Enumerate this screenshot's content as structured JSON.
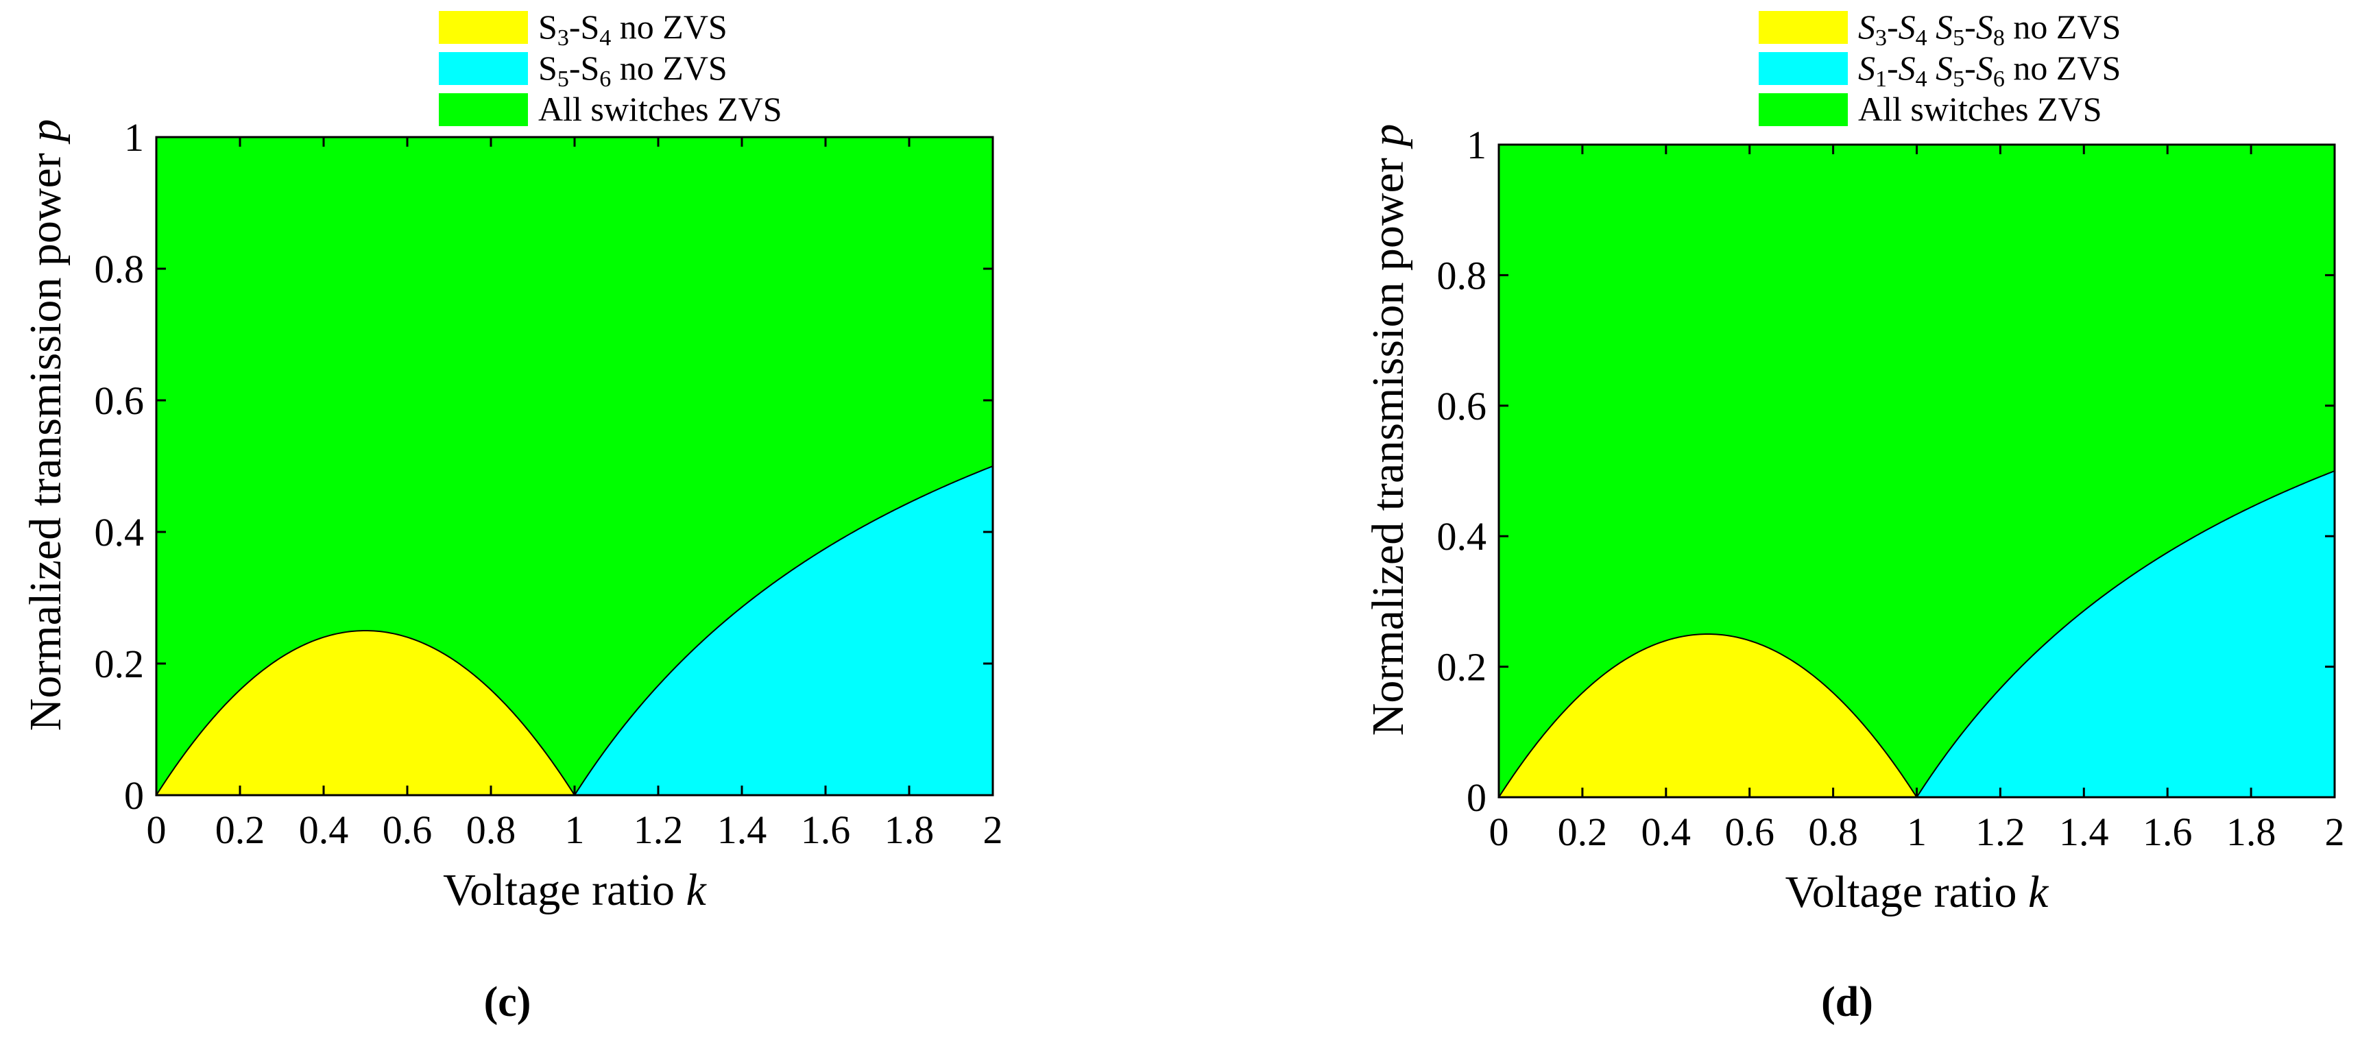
{
  "chart_data": [
    {
      "type": "area",
      "panel_label": "(c)",
      "xlabel": {
        "text": "Voltage ratio ",
        "var": "k"
      },
      "ylabel": {
        "text": "Normalized transmission power ",
        "var": "p"
      },
      "xlim": [
        0,
        2
      ],
      "ylim": [
        0,
        1
      ],
      "x_ticks": [
        "0",
        "0.2",
        "0.4",
        "0.6",
        "0.8",
        "1",
        "1.2",
        "1.4",
        "1.6",
        "1.8",
        "2"
      ],
      "y_ticks": [
        "0",
        "0.2",
        "0.4",
        "0.6",
        "0.8",
        "1"
      ],
      "grid": false,
      "legend_position": "top-center",
      "series": [
        {
          "name_parts": [
            {
              "t": "S"
            },
            {
              "t": "3",
              "sub": true
            },
            {
              "t": "-S"
            },
            {
              "t": "4",
              "sub": true
            },
            {
              "t": " no ZVS"
            }
          ],
          "color": "#ffff00",
          "x_range": [
            0,
            1
          ],
          "boundary": "p = k(1 - k)"
        },
        {
          "name_parts": [
            {
              "t": "S"
            },
            {
              "t": "5",
              "sub": true
            },
            {
              "t": "-S"
            },
            {
              "t": "6",
              "sub": true
            },
            {
              "t": " no ZVS"
            }
          ],
          "color": "#00ffff",
          "x_range": [
            1,
            2
          ],
          "boundary": "p = (k - 1)/k, capped at 0.5"
        },
        {
          "name_parts": [
            {
              "t": "All switches ZVS"
            }
          ],
          "color": "#00ff00",
          "x_range": [
            0,
            2
          ],
          "boundary": "remaining region"
        }
      ]
    },
    {
      "type": "area",
      "panel_label": "(d)",
      "xlabel": {
        "text": "Voltage ratio ",
        "var": "k"
      },
      "ylabel": {
        "text": "Normalized transmission power ",
        "var": "p"
      },
      "xlim": [
        0,
        2
      ],
      "ylim": [
        0,
        1
      ],
      "x_ticks": [
        "0",
        "0.2",
        "0.4",
        "0.6",
        "0.8",
        "1",
        "1.2",
        "1.4",
        "1.6",
        "1.8",
        "2"
      ],
      "y_ticks": [
        "0",
        "0.2",
        "0.4",
        "0.6",
        "0.8",
        "1"
      ],
      "grid": false,
      "legend_position": "top-center",
      "series": [
        {
          "name_parts": [
            {
              "t": "S",
              "i": true
            },
            {
              "t": "3",
              "sub": true
            },
            {
              "t": "-"
            },
            {
              "t": "S",
              "i": true
            },
            {
              "t": "4",
              "sub": true
            },
            {
              "t": " "
            },
            {
              "t": "S",
              "i": true
            },
            {
              "t": "5",
              "sub": true
            },
            {
              "t": "-"
            },
            {
              "t": "S",
              "i": true
            },
            {
              "t": "8",
              "sub": true
            },
            {
              "t": " no ZVS"
            }
          ],
          "color": "#ffff00",
          "x_range": [
            0,
            1
          ],
          "boundary": "p = k(1 - k)"
        },
        {
          "name_parts": [
            {
              "t": "S",
              "i": true
            },
            {
              "t": "1",
              "sub": true
            },
            {
              "t": "-"
            },
            {
              "t": "S",
              "i": true
            },
            {
              "t": "4",
              "sub": true
            },
            {
              "t": " "
            },
            {
              "t": "S",
              "i": true
            },
            {
              "t": "5",
              "sub": true
            },
            {
              "t": "-"
            },
            {
              "t": "S",
              "i": true
            },
            {
              "t": "6",
              "sub": true
            },
            {
              "t": " no ZVS"
            }
          ],
          "color": "#00ffff",
          "x_range": [
            1,
            2
          ],
          "boundary": "p = (k - 1)/k, capped at 0.5"
        },
        {
          "name_parts": [
            {
              "t": "All switches ZVS"
            }
          ],
          "color": "#00ff00",
          "x_range": [
            0,
            2
          ],
          "boundary": "remaining region"
        }
      ]
    }
  ]
}
